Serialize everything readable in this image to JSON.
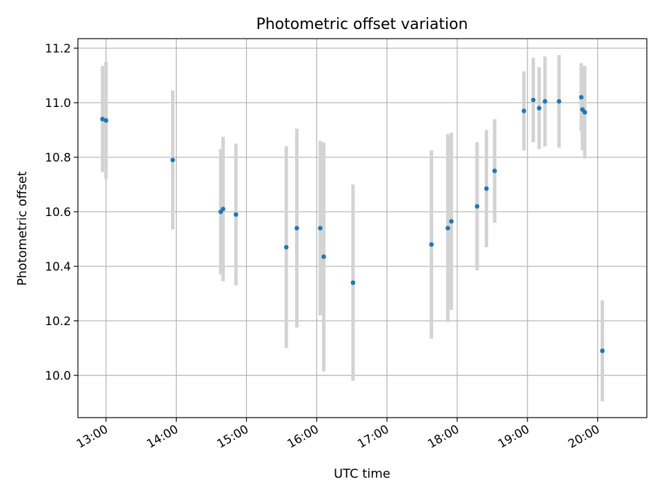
{
  "chart_data": {
    "type": "scatter",
    "title": "Photometric offset variation",
    "xlabel": "UTC time",
    "ylabel": "Photometric offset",
    "x_tick_labels": [
      "13:00",
      "14:00",
      "15:00",
      "16:00",
      "17:00",
      "18:00",
      "19:00",
      "20:00"
    ],
    "y_tick_labels": [
      "10.0",
      "10.2",
      "10.4",
      "10.6",
      "10.8",
      "11.0",
      "11.2"
    ],
    "xlim": [
      "12:36",
      "20:42"
    ],
    "ylim": [
      9.845,
      11.235
    ],
    "grid": true,
    "series": [
      {
        "marker_color": "#1f77b4",
        "errorbar_color": "#d3d3d3",
        "points": [
          {
            "x": "12:57",
            "y": 10.94,
            "err": 0.195
          },
          {
            "x": "13:00",
            "y": 10.935,
            "err": 0.215
          },
          {
            "x": "13:57",
            "y": 10.79,
            "err": 0.255
          },
          {
            "x": "14:38",
            "y": 10.6,
            "err": 0.23
          },
          {
            "x": "14:40",
            "y": 10.61,
            "err": 0.265
          },
          {
            "x": "14:51",
            "y": 10.59,
            "err": 0.26
          },
          {
            "x": "15:34",
            "y": 10.47,
            "err": 0.37
          },
          {
            "x": "15:43",
            "y": 10.54,
            "err": 0.365
          },
          {
            "x": "16:03",
            "y": 10.54,
            "err": 0.32
          },
          {
            "x": "16:06",
            "y": 10.435,
            "err": 0.42
          },
          {
            "x": "16:31",
            "y": 10.34,
            "err": 0.36
          },
          {
            "x": "17:38",
            "y": 10.48,
            "err": 0.345
          },
          {
            "x": "17:52",
            "y": 10.54,
            "err": 0.345
          },
          {
            "x": "17:55",
            "y": 10.565,
            "err": 0.325
          },
          {
            "x": "18:17",
            "y": 10.62,
            "err": 0.235
          },
          {
            "x": "18:25",
            "y": 10.685,
            "err": 0.215
          },
          {
            "x": "18:32",
            "y": 10.75,
            "err": 0.19
          },
          {
            "x": "18:57",
            "y": 10.97,
            "err": 0.145
          },
          {
            "x": "19:05",
            "y": 11.01,
            "err": 0.155
          },
          {
            "x": "19:10",
            "y": 10.98,
            "err": 0.15
          },
          {
            "x": "19:15",
            "y": 11.005,
            "err": 0.165
          },
          {
            "x": "19:27",
            "y": 11.005,
            "err": 0.17
          },
          {
            "x": "19:46",
            "y": 11.02,
            "err": 0.125
          },
          {
            "x": "19:47",
            "y": 10.975,
            "err": 0.15
          },
          {
            "x": "19:49",
            "y": 10.965,
            "err": 0.17
          },
          {
            "x": "20:04",
            "y": 10.09,
            "err": 0.185
          }
        ]
      }
    ]
  }
}
